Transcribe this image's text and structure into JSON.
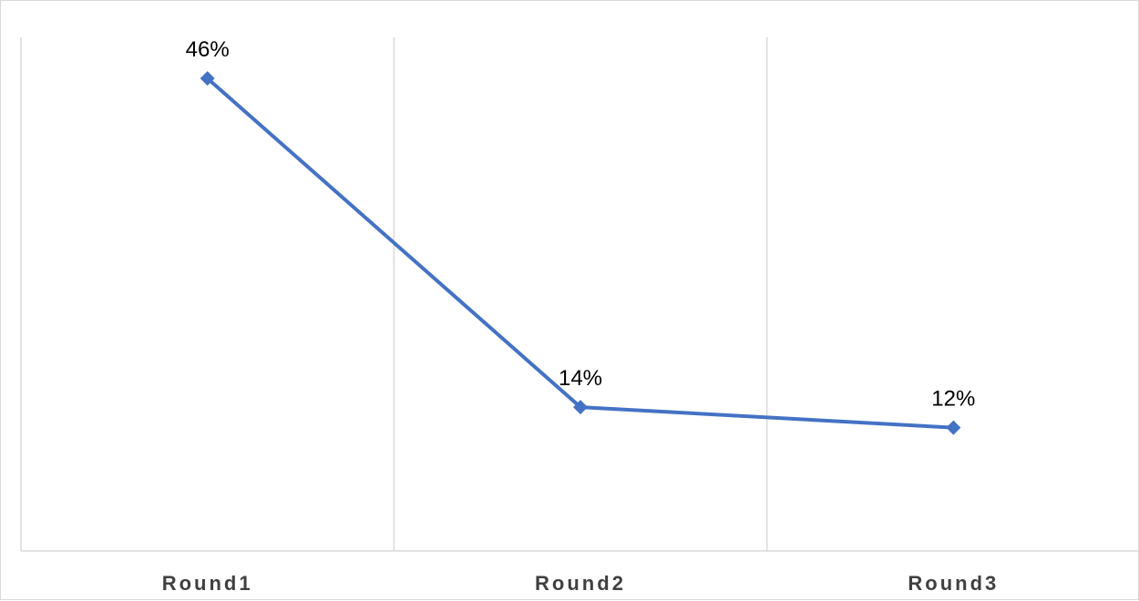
{
  "chart_data": {
    "type": "line",
    "title": "",
    "xlabel": "",
    "ylabel": "",
    "categories": [
      "Round1",
      "Round2",
      "Round3"
    ],
    "series": [
      {
        "values": [
          46,
          14,
          12
        ],
        "data_labels": [
          "46%",
          "14%",
          "12%"
        ],
        "color": "#4472C4",
        "marker": "diamond"
      }
    ],
    "ylim": [
      0,
      50
    ],
    "y_unit": "%",
    "grid": "vertical",
    "gridline_color": "#d9d9d9",
    "legend": "none"
  }
}
